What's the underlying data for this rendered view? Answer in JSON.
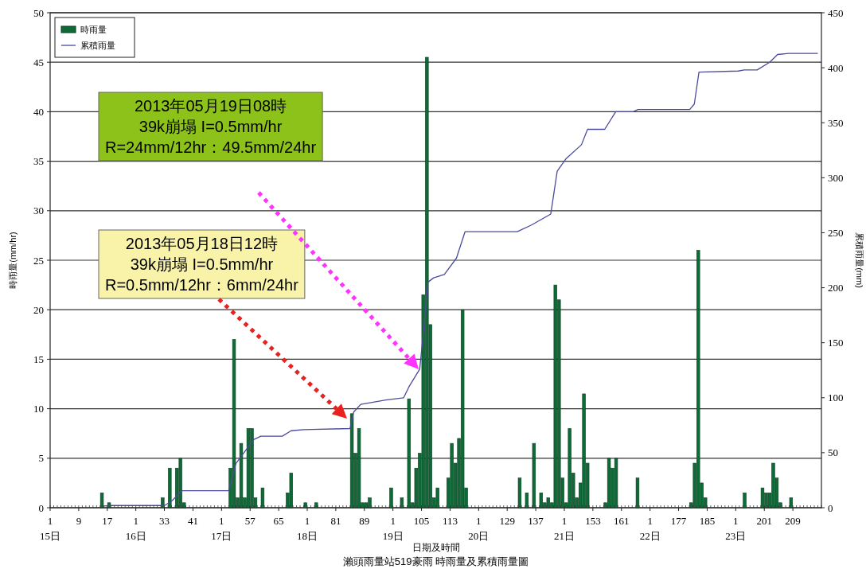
{
  "chart_data": {
    "type": "bar",
    "title": "瀨頭雨量站519豪雨 時雨量及累積雨量圖",
    "xlabel": "日期及時間",
    "ylabel": "時雨量(mm/hr)",
    "y2label": "累積雨量(mm)",
    "xlim": [
      1,
      217
    ],
    "xticks": [
      {
        "value": 1,
        "label": "1\n15日"
      },
      9,
      17,
      {
        "value": 25,
        "label": "1\n16日"
      },
      33,
      41,
      {
        "value": 49,
        "label": "1\n17日"
      },
      57,
      65,
      {
        "value": 73,
        "label": "1\n18日"
      },
      81,
      89,
      {
        "value": 97,
        "label": "1\n19日"
      },
      105,
      113,
      {
        "value": 121,
        "label": "1\n20日"
      },
      129,
      137,
      {
        "value": 145,
        "label": "1\n21日"
      },
      153,
      161,
      {
        "value": 169,
        "label": "1\n22日"
      },
      177,
      185,
      {
        "value": 193,
        "label": "1\n23日"
      },
      201,
      209
    ],
    "ylim": [
      0,
      50
    ],
    "yticks": [
      0,
      5,
      10,
      15,
      20,
      25,
      30,
      35,
      40,
      45,
      50
    ],
    "y2lim": [
      0,
      450
    ],
    "y2ticks": [
      0,
      50,
      100,
      150,
      200,
      250,
      300,
      350,
      400,
      450
    ],
    "grid": "y",
    "legend": "top left",
    "series": [
      {
        "name": "時雨量",
        "type": "bar",
        "color": "#0e6b38",
        "x": [
          15.5,
          17.5,
          32.5,
          34.5,
          36.5,
          37.5,
          38.5,
          51.5,
          52.5,
          53.5,
          54.5,
          55.5,
          56.5,
          57.5,
          58.5,
          60.5,
          67.5,
          68.5,
          72.5,
          75.5,
          85.5,
          86.5,
          87.5,
          88.5,
          89.5,
          90.5,
          96.5,
          99.5,
          101.5,
          102.5,
          103.5,
          104.5,
          105.5,
          106.5,
          107.5,
          108.5,
          109.5,
          112.5,
          113.5,
          114.5,
          115.5,
          116.5,
          117.5,
          132.5,
          134.5,
          136.5,
          138.5,
          139.5,
          140.5,
          141.5,
          142.5,
          143.5,
          144.5,
          145.5,
          146.5,
          147.5,
          148.5,
          149.5,
          150.5,
          151.5,
          156.5,
          157.5,
          158.5,
          159.5,
          165.5,
          180.5,
          181.5,
          182.5,
          183.5,
          184.5,
          195.5,
          200.5,
          201.5,
          202.5,
          203.5,
          204.5,
          205.5,
          208.5
        ],
        "values": [
          1.5,
          0.5,
          1,
          4,
          4,
          5,
          0.5,
          4,
          17,
          1,
          6.5,
          1,
          8,
          8,
          1,
          2,
          1.5,
          3.5,
          0.5,
          0.5,
          9.5,
          5.5,
          8,
          0.5,
          0.5,
          1,
          2,
          1,
          11,
          0.5,
          4,
          5.5,
          21.5,
          45.5,
          18.5,
          1,
          2,
          3,
          6.5,
          4.5,
          7,
          20,
          2,
          3,
          1.5,
          6.5,
          1.5,
          0.5,
          1,
          0.5,
          22.5,
          21,
          3,
          0.5,
          8,
          3.5,
          1,
          2.5,
          11.5,
          4.5,
          0.5,
          5,
          4,
          5,
          3,
          0.5,
          4.5,
          26,
          2.5,
          1,
          1.5,
          2,
          1.5,
          1.5,
          4.5,
          3,
          0.5,
          1
        ]
      },
      {
        "name": "累積雨量",
        "type": "line",
        "axis": "y2",
        "color": "#4b4b9a",
        "x": [
          16,
          18,
          33,
          35,
          38,
          51,
          53,
          58,
          60,
          66,
          68.5,
          72,
          85,
          86,
          88,
          95,
          100,
          101.5,
          104.5,
          105.5,
          106.8,
          108.4,
          111.4,
          114.8,
          117.2,
          131.8,
          135.8,
          141.2,
          143,
          145.4,
          149.8,
          151.5,
          156.3,
          159.4,
          164.3,
          165.6,
          180.1,
          181.4,
          182.7,
          193.7,
          195.4,
          199,
          202.5,
          204.7,
          207.8,
          216
        ],
        "values": [
          1.5,
          2,
          2,
          6,
          15.5,
          15.5,
          40,
          62,
          65,
          65,
          70,
          71,
          72,
          87,
          94,
          98,
          100,
          110,
          126,
          158,
          205,
          209,
          212,
          227,
          251,
          251,
          257,
          267,
          306,
          317,
          330,
          344,
          344,
          360,
          360,
          362,
          362,
          367,
          396,
          397,
          398,
          398,
          405,
          412,
          413,
          413
        ]
      }
    ],
    "annotations": [
      "2013年05月18日12時\n39k崩塌 I=0.5mm/hr\nR=0.5mm/12hr：6mm/24hr",
      "2013年05月19日08時\n39k崩塌 I=0.5mm/hr\nR=24mm/12hr：49.5mm/24hr"
    ]
  }
}
